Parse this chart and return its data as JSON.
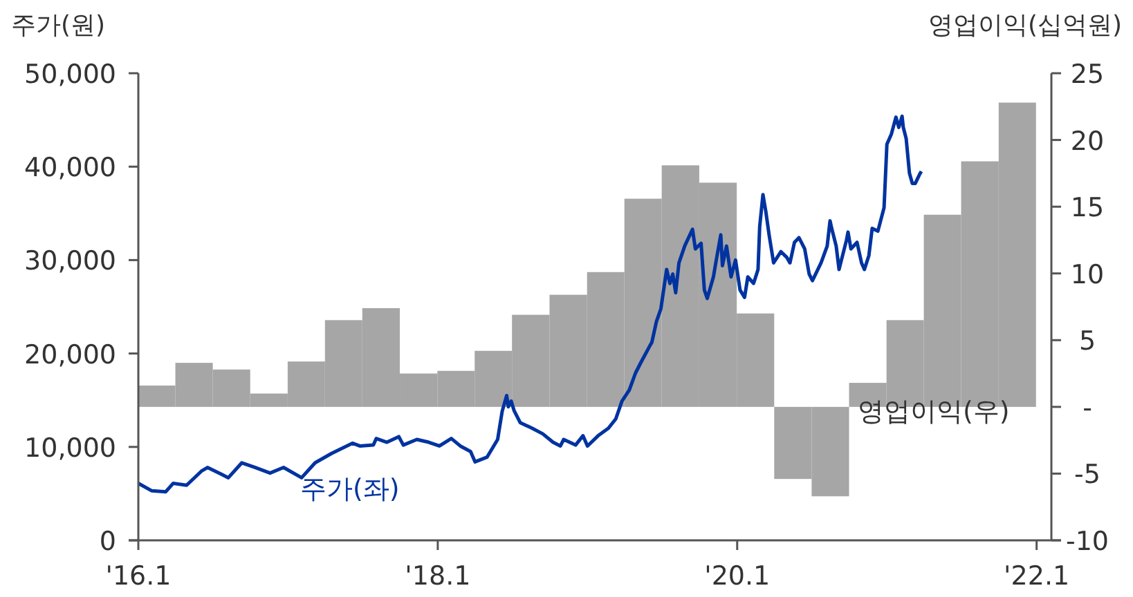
{
  "chart_data": {
    "type": "line",
    "ylabel": "주가(원)",
    "y2label": "영업이익(십억원)",
    "xlim": [
      "2016-01-01",
      "2022-02-06"
    ],
    "xticks": [
      {
        "value": "2016-01",
        "label": "'16.1"
      },
      {
        "value": "2018-01",
        "label": "'18.1"
      },
      {
        "value": "2020-01",
        "label": "'20.1"
      },
      {
        "value": "2022-01",
        "label": "'22.1"
      }
    ],
    "ylim": [
      0,
      50000
    ],
    "yticks": [
      0,
      {
        "value": 10000,
        "label": "10,000"
      },
      {
        "value": 20000,
        "label": "20,000"
      },
      {
        "value": 30000,
        "label": "30,000"
      },
      {
        "value": 40000,
        "label": "40,000"
      },
      {
        "value": 50000,
        "label": "50,000"
      }
    ],
    "y2lim": [
      -10,
      25
    ],
    "y2ticks": [
      -10,
      -5,
      {
        "value": 0,
        "label": "-"
      },
      5,
      10,
      15,
      20,
      25
    ],
    "series": [
      {
        "name": "영업이익(우)",
        "type": "bar",
        "axis": "y2",
        "color": "#a6a6a6",
        "x": [
          "2016-02-15",
          "2016-05-16",
          "2016-08-16",
          "2016-11-15",
          "2017-02-15",
          "2017-05-16",
          "2017-08-16",
          "2017-11-15",
          "2018-02-15",
          "2018-05-16",
          "2018-08-16",
          "2018-11-15",
          "2019-02-15",
          "2019-05-16",
          "2019-08-16",
          "2019-11-15",
          "2020-02-15",
          "2020-05-16",
          "2020-08-16",
          "2020-11-15",
          "2021-02-15",
          "2021-05-16",
          "2021-08-16",
          "2021-11-15"
        ],
        "values": [
          1.6,
          3.3,
          2.8,
          1.0,
          3.4,
          6.5,
          7.4,
          2.5,
          2.7,
          4.2,
          6.9,
          8.4,
          10.1,
          15.6,
          18.1,
          16.8,
          7.0,
          -5.4,
          -6.7,
          1.8,
          6.5,
          14.4,
          18.4,
          22.8
        ]
      },
      {
        "name": "주가(좌)",
        "axis": "y",
        "color": "#0033a0",
        "x": [
          "2016-01-01",
          "2016-02-03",
          "2016-03-08",
          "2016-03-26",
          "2016-04-28",
          "2016-06-03",
          "2016-06-18",
          "2016-07-21",
          "2016-08-08",
          "2016-09-10",
          "2016-10-13",
          "2016-11-18",
          "2016-12-21",
          "2017-02-03",
          "2017-03-08",
          "2017-04-17",
          "2017-06-07",
          "2017-06-25",
          "2017-07-28",
          "2017-08-04",
          "2017-08-30",
          "2017-09-28",
          "2017-10-09",
          "2017-11-11",
          "2017-12-10",
          "2018-01-05",
          "2018-02-03",
          "2018-02-25",
          "2018-03-22",
          "2018-04-02",
          "2018-05-01",
          "2018-05-27",
          "2018-06-07",
          "2018-06-18",
          "2018-06-22",
          "2018-06-29",
          "2018-07-06",
          "2018-07-21",
          "2018-08-19",
          "2018-09-14",
          "2018-10-09",
          "2018-10-27",
          "2018-11-04",
          "2018-12-03",
          "2018-12-21",
          "2019-01-01",
          "2019-01-27",
          "2019-02-21",
          "2019-03-11",
          "2019-03-26",
          "2019-04-13",
          "2019-04-28",
          "2019-05-12",
          "2019-06-03",
          "2019-06-07",
          "2019-06-18",
          "2019-06-29",
          "2019-07-13",
          "2019-07-21",
          "2019-07-28",
          "2019-08-04",
          "2019-08-12",
          "2019-08-26",
          "2019-09-14",
          "2019-09-21",
          "2019-10-05",
          "2019-10-13",
          "2019-10-20",
          "2019-11-04",
          "2019-11-11",
          "2019-11-22",
          "2019-11-26",
          "2019-12-06",
          "2019-12-17",
          "2019-12-28",
          "2020-01-08",
          "2020-01-19",
          "2020-01-27",
          "2020-02-10",
          "2020-02-21",
          "2020-02-25",
          "2020-03-04",
          "2020-03-11",
          "2020-03-19",
          "2020-03-30",
          "2020-04-17",
          "2020-05-01",
          "2020-05-09",
          "2020-05-20",
          "2020-05-31",
          "2020-06-14",
          "2020-06-25",
          "2020-07-03",
          "2020-07-24",
          "2020-08-08",
          "2020-08-15",
          "2020-08-19",
          "2020-08-30",
          "2020-09-06",
          "2020-09-24",
          "2020-09-28",
          "2020-10-05",
          "2020-10-20",
          "2020-10-31",
          "2020-11-07",
          "2020-11-18",
          "2020-11-26",
          "2020-12-10",
          "2020-12-25",
          "2021-01-01",
          "2021-01-12",
          "2021-01-23",
          "2021-01-30",
          "2021-02-07",
          "2021-02-10",
          "2021-02-17",
          "2021-02-25",
          "2021-03-04",
          "2021-03-11",
          "2021-03-22",
          "2021-03-26"
        ],
        "values": [
          6100,
          5300,
          5200,
          6100,
          5900,
          7400,
          7800,
          7100,
          6700,
          8300,
          7800,
          7200,
          7800,
          6700,
          8300,
          9300,
          10400,
          10100,
          10200,
          10900,
          10500,
          11100,
          10200,
          10800,
          10500,
          10100,
          10900,
          10100,
          9500,
          8400,
          8900,
          10800,
          13800,
          15500,
          14300,
          14900,
          13900,
          12600,
          12000,
          11400,
          10500,
          10100,
          10800,
          10200,
          11200,
          10100,
          11200,
          12000,
          13000,
          14900,
          16100,
          17900,
          19100,
          20900,
          21200,
          23400,
          24800,
          29000,
          27500,
          28500,
          26500,
          29700,
          31500,
          33300,
          31200,
          31800,
          26800,
          25900,
          28200,
          30000,
          32700,
          29400,
          31500,
          28200,
          30000,
          26800,
          26000,
          28200,
          27500,
          29000,
          33600,
          37000,
          35200,
          32700,
          29700,
          30900,
          30300,
          29700,
          31900,
          32400,
          31200,
          28500,
          27800,
          29700,
          31500,
          34200,
          33400,
          31500,
          29000,
          32100,
          33000,
          31200,
          31900,
          29700,
          29000,
          30500,
          33400,
          33100,
          35600,
          42400,
          43500,
          45300,
          44200,
          45400,
          44200,
          43000,
          39300,
          38200,
          38200,
          39200,
          39500
        ]
      }
    ]
  }
}
